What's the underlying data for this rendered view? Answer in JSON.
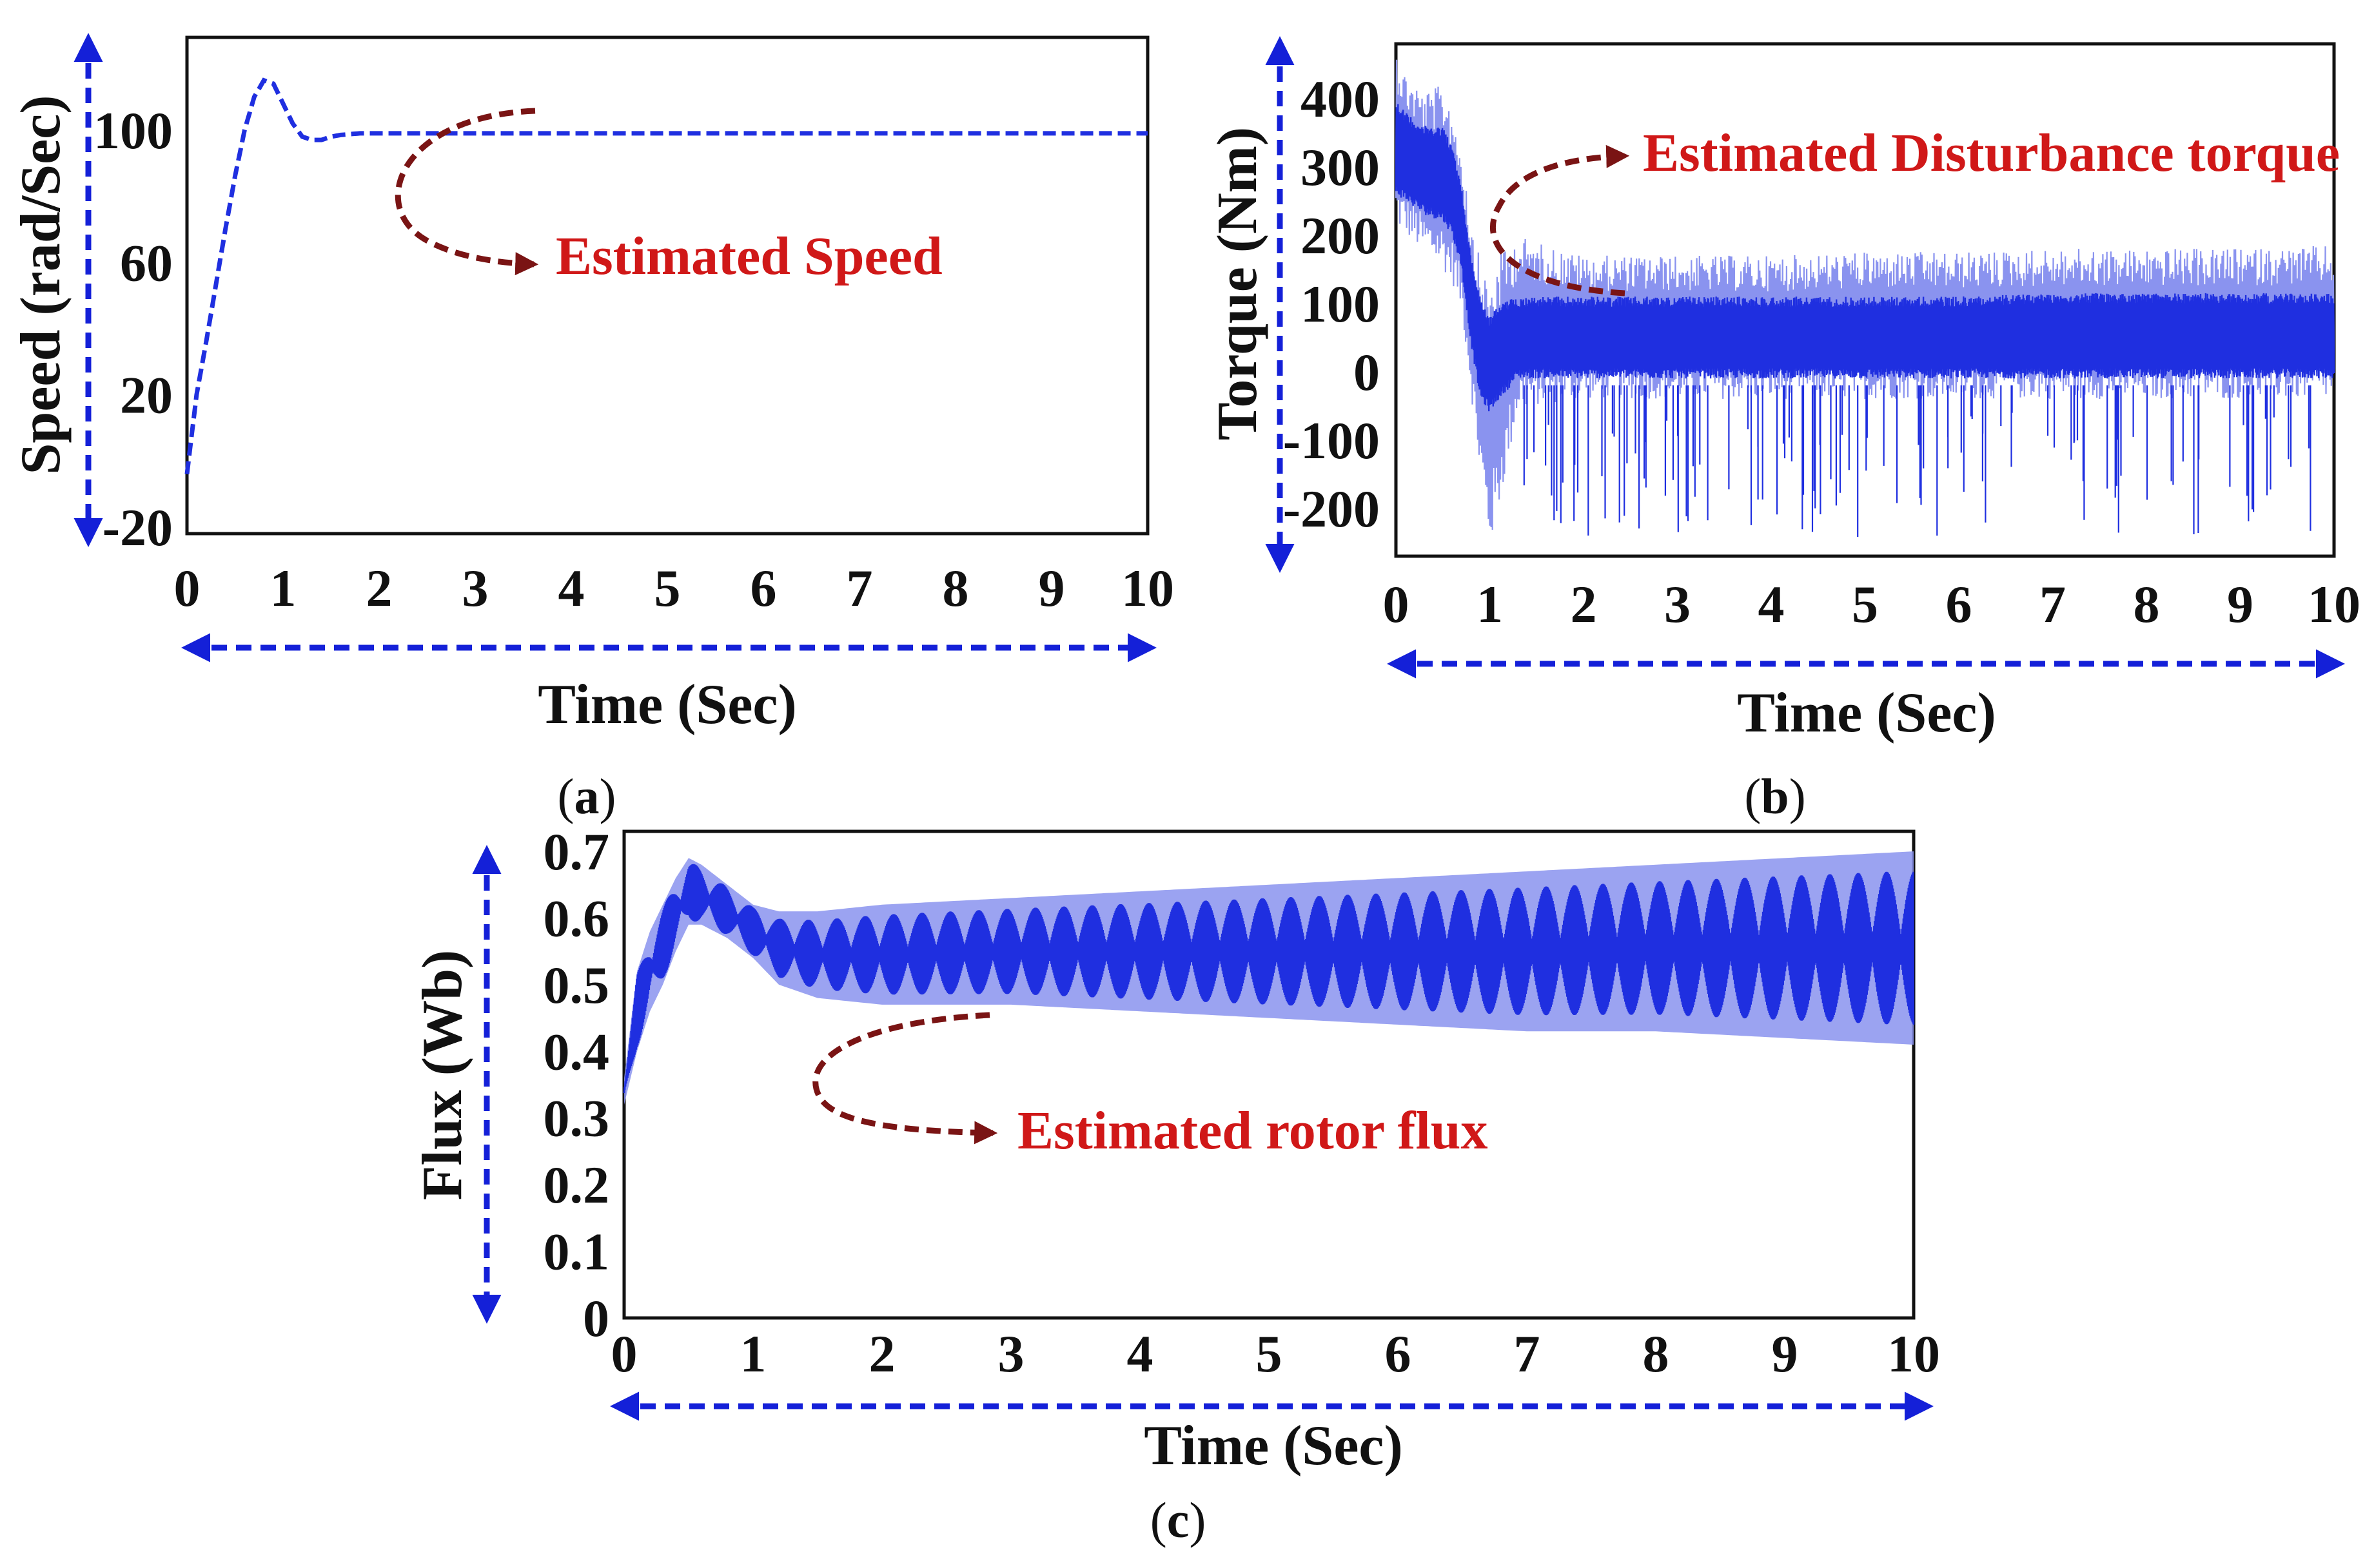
{
  "colors": {
    "signal": "#1f2fe0",
    "signal_light": "#8a93ef",
    "axis_arrow": "#1420d8",
    "annotation_text": "#d01818",
    "annotation_arrow": "#7a1414",
    "frame": "#111111"
  },
  "chart_data": [
    {
      "id": "a",
      "panel_label": "(a)",
      "type": "line",
      "title": "",
      "xlabel": "Time (Sec)",
      "ylabel": "Speed (rad/Sec)",
      "xlim": [
        0,
        10
      ],
      "ylim": [
        -20,
        130
      ],
      "x_ticks": [
        "0",
        "1",
        "2",
        "3",
        "4",
        "5",
        "6",
        "7",
        "8",
        "9",
        "10"
      ],
      "y_ticks": [
        "100",
        "60",
        "20",
        "-20"
      ],
      "y_tick_values": [
        100,
        60,
        20,
        -20
      ],
      "annotation": "Estimated Speed",
      "series": [
        {
          "name": "Estimated Speed",
          "style": "dashed",
          "x": [
            0,
            0.1,
            0.2,
            0.3,
            0.4,
            0.5,
            0.6,
            0.7,
            0.8,
            0.9,
            1.0,
            1.1,
            1.2,
            1.3,
            1.4,
            1.5,
            1.6,
            1.8,
            2.0,
            2.5,
            3,
            4,
            5,
            6,
            7,
            8,
            9,
            10
          ],
          "values": [
            -2,
            22,
            38,
            55,
            72,
            88,
            102,
            112,
            117,
            116,
            110,
            104,
            100,
            99,
            99,
            100,
            100.5,
            101,
            101,
            101,
            101,
            101,
            101,
            101,
            101,
            101,
            101,
            101
          ]
        }
      ]
    },
    {
      "id": "b",
      "panel_label": "(b)",
      "type": "line",
      "title": "",
      "xlabel": "Time (Sec)",
      "ylabel": "Torque (Nm)",
      "xlim": [
        0,
        10
      ],
      "ylim": [
        -270,
        480
      ],
      "x_ticks": [
        "0",
        "1",
        "2",
        "3",
        "4",
        "5",
        "6",
        "7",
        "8",
        "9",
        "10"
      ],
      "y_ticks": [
        "400",
        "300",
        "200",
        "100",
        "0",
        "-100",
        "-200"
      ],
      "y_tick_values": [
        400,
        300,
        200,
        100,
        0,
        -100,
        -200
      ],
      "annotation": "Estimated Disturbance torque",
      "series": [
        {
          "name": "Estimated Disturbance torque (envelope)",
          "x": [
            0,
            0.1,
            0.3,
            0.5,
            0.6,
            0.7,
            0.8,
            0.9,
            1.0,
            1.1,
            1.3,
            1.5,
            2,
            3,
            4,
            5,
            6,
            7,
            8,
            9,
            10
          ],
          "upper": [
            480,
            440,
            410,
            420,
            390,
            330,
            230,
            160,
            130,
            180,
            200,
            190,
            170,
            170,
            170,
            175,
            175,
            180,
            180,
            180,
            185
          ],
          "lower": [
            210,
            200,
            170,
            150,
            130,
            90,
            -30,
            -160,
            -260,
            -200,
            -60,
            -50,
            -40,
            -40,
            -40,
            -40,
            -40,
            -40,
            -40,
            -40,
            -40
          ],
          "core_upper": [
            400,
            380,
            360,
            360,
            330,
            270,
            170,
            110,
            80,
            100,
            110,
            110,
            110,
            110,
            110,
            110,
            110,
            115,
            115,
            115,
            115
          ],
          "core_lower": [
            260,
            250,
            230,
            220,
            200,
            150,
            40,
            -40,
            -60,
            -40,
            -10,
            -10,
            -10,
            -10,
            -10,
            -10,
            -10,
            -10,
            -10,
            -10,
            -10
          ],
          "spike_min": -245
        }
      ]
    },
    {
      "id": "c",
      "panel_label": "(c)",
      "type": "line",
      "title": "",
      "xlabel": "Time (Sec)",
      "ylabel": "Flux (Wb)",
      "xlim": [
        0,
        10
      ],
      "ylim": [
        0,
        0.73
      ],
      "x_ticks": [
        "0",
        "1",
        "2",
        "3",
        "4",
        "5",
        "6",
        "7",
        "8",
        "9",
        "10"
      ],
      "y_ticks": [
        "0.7",
        "0.6",
        "0.5",
        "0.4",
        "0.3",
        "0.2",
        "0.1",
        "0"
      ],
      "y_tick_values": [
        0.7,
        0.6,
        0.5,
        0.4,
        0.3,
        0.2,
        0.1,
        0
      ],
      "annotation": "Estimated rotor flux",
      "series": [
        {
          "name": "Estimated rotor flux (envelope)",
          "x": [
            0,
            0.1,
            0.2,
            0.3,
            0.4,
            0.5,
            0.6,
            0.8,
            1.0,
            1.2,
            1.5,
            2,
            3,
            4,
            5,
            6,
            7,
            8,
            9,
            10
          ],
          "upper": [
            0.36,
            0.52,
            0.58,
            0.62,
            0.66,
            0.69,
            0.68,
            0.65,
            0.62,
            0.61,
            0.61,
            0.62,
            0.63,
            0.64,
            0.65,
            0.66,
            0.67,
            0.68,
            0.69,
            0.7
          ],
          "lower": [
            0.32,
            0.4,
            0.46,
            0.5,
            0.55,
            0.59,
            0.59,
            0.57,
            0.54,
            0.5,
            0.48,
            0.47,
            0.47,
            0.46,
            0.45,
            0.44,
            0.43,
            0.43,
            0.42,
            0.41
          ],
          "beat_period": 0.22
        }
      ]
    }
  ],
  "panel_labels": {
    "a": {
      "open": "(",
      "letter": "a",
      "close": ")"
    },
    "b": {
      "open": "(",
      "letter": "b",
      "close": ")"
    },
    "c": {
      "open": "(",
      "letter": "c",
      "close": ")"
    }
  }
}
